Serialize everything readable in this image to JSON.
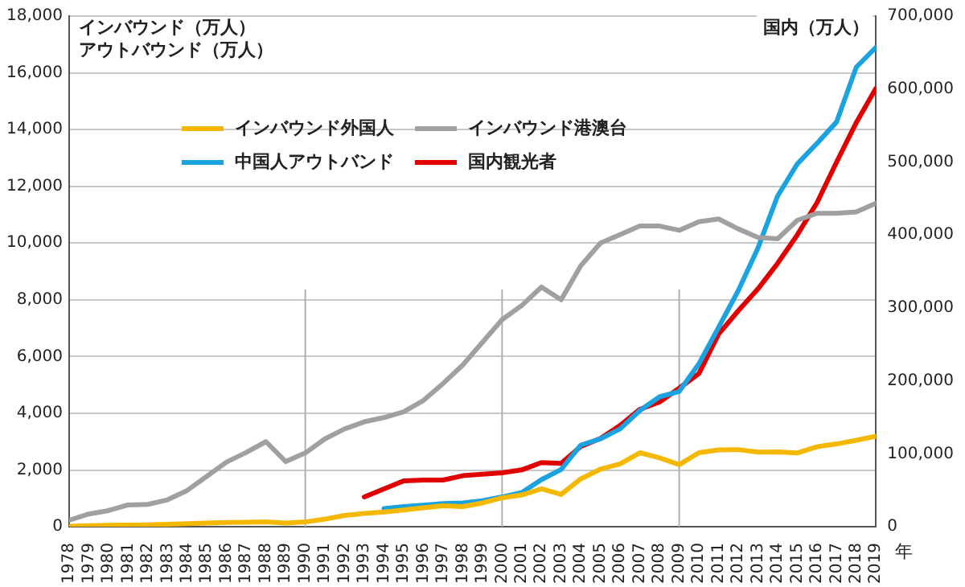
{
  "chart_data": {
    "type": "line",
    "ylabel": "インバウンド（万人）アウトバウンド（万人）",
    "y2label": "国内（万人）",
    "xlabel": "年",
    "x": [
      1978,
      1979,
      1980,
      1981,
      1982,
      1983,
      1984,
      1985,
      1986,
      1987,
      1988,
      1989,
      1990,
      1991,
      1992,
      1993,
      1994,
      1995,
      1996,
      1997,
      1998,
      1999,
      2000,
      2001,
      2002,
      2003,
      2004,
      2005,
      2006,
      2007,
      2008,
      2009,
      2010,
      2011,
      2012,
      2013,
      2014,
      2015,
      2016,
      2017,
      2018,
      2019
    ],
    "series": [
      {
        "name": "インバウンド外国人",
        "color": "#f5b800",
        "values": [
          20,
          40,
          50,
          60,
          70,
          90,
          110,
          130,
          150,
          160,
          170,
          130,
          170,
          270,
          400,
          470,
          520,
          590,
          670,
          740,
          710,
          840,
          1020,
          1120,
          1340,
          1140,
          1690,
          2030,
          2220,
          2610,
          2430,
          2190,
          2610,
          2710,
          2720,
          2630,
          2640,
          2600,
          2820,
          2920,
          3050,
          3190
        ]
      },
      {
        "name": "インバウンド港澳台",
        "color": "#a0a0a0",
        "values": [
          230,
          450,
          570,
          770,
          790,
          950,
          1280,
          1780,
          2280,
          2620,
          3000,
          2300,
          2600,
          3100,
          3450,
          3700,
          3850,
          4050,
          4450,
          5050,
          5700,
          6500,
          7300,
          7800,
          8450,
          8000,
          9200,
          10000,
          10300,
          10600,
          10600,
          10450,
          10750,
          10850,
          10500,
          10200,
          10150,
          10800,
          11050,
          11050,
          11100,
          11400
        ]
      },
      {
        "name": "中国人アウトバンド",
        "color": "#1aa3e0",
        "values": [
          null,
          null,
          null,
          null,
          null,
          null,
          null,
          null,
          null,
          null,
          null,
          null,
          null,
          null,
          null,
          null,
          640,
          710,
          760,
          820,
          840,
          920,
          1050,
          1210,
          1660,
          2020,
          2880,
          3100,
          3450,
          4100,
          4580,
          4770,
          5740,
          7030,
          8320,
          9820,
          11660,
          12790,
          13510,
          14270,
          16200,
          16900
        ]
      },
      {
        "name": "国内観光者",
        "color": "#e00000",
        "axis": "y2",
        "values": [
          null,
          null,
          null,
          null,
          null,
          null,
          null,
          null,
          null,
          null,
          null,
          null,
          null,
          null,
          null,
          41000,
          52000,
          63000,
          64000,
          64000,
          70000,
          72000,
          74000,
          78000,
          88000,
          87000,
          110000,
          121000,
          139000,
          161000,
          171000,
          190000,
          210000,
          264000,
          296000,
          326000,
          361000,
          400000,
          444000,
          500000,
          554000,
          601000
        ]
      }
    ],
    "xlim": [
      1978,
      2019
    ],
    "xticks": [
      1978,
      1979,
      1980,
      1981,
      1982,
      1983,
      1984,
      1985,
      1986,
      1987,
      1988,
      1989,
      1990,
      1991,
      1992,
      1993,
      1994,
      1995,
      1996,
      1997,
      1998,
      1999,
      2000,
      2001,
      2002,
      2003,
      2004,
      2005,
      2006,
      2007,
      2008,
      2009,
      2010,
      2011,
      2012,
      2013,
      2014,
      2015,
      2016,
      2017,
      2018,
      2019
    ],
    "ylim": [
      0,
      18000
    ],
    "yticks": [
      0,
      {
        "value": 2000,
        "label": "2,000"
      },
      {
        "value": 4000,
        "label": "4,000"
      },
      {
        "value": 6000,
        "label": "6,000"
      },
      {
        "value": 8000,
        "label": "8,000"
      },
      {
        "value": 10000,
        "label": "10,000"
      },
      {
        "value": 12000,
        "label": "12,000"
      },
      {
        "value": 14000,
        "label": "14,000"
      },
      {
        "value": 16000,
        "label": "16,000"
      },
      {
        "value": 18000,
        "label": "18,000"
      }
    ],
    "y2lim": [
      0,
      700000
    ],
    "y2ticks": [
      0,
      {
        "value": 100000,
        "label": "100,000"
      },
      {
        "value": 200000,
        "label": "200,000"
      },
      {
        "value": 300000,
        "label": "300,000"
      },
      {
        "value": 400000,
        "label": "400,000"
      },
      {
        "value": 500000,
        "label": "500,000"
      },
      {
        "value": 600000,
        "label": "600,000"
      },
      {
        "value": 700000,
        "label": "700,000"
      }
    ],
    "ref_lines": [
      {
        "axis": "x",
        "value": 1990,
        "color": "#b0b0b0"
      },
      {
        "axis": "x",
        "value": 2000,
        "color": "#b0b0b0"
      },
      {
        "axis": "x",
        "value": 2009,
        "color": "#b0b0b0"
      }
    ],
    "grid": "y",
    "legend": "top left",
    "marker": "none",
    "line_style": "solid"
  }
}
